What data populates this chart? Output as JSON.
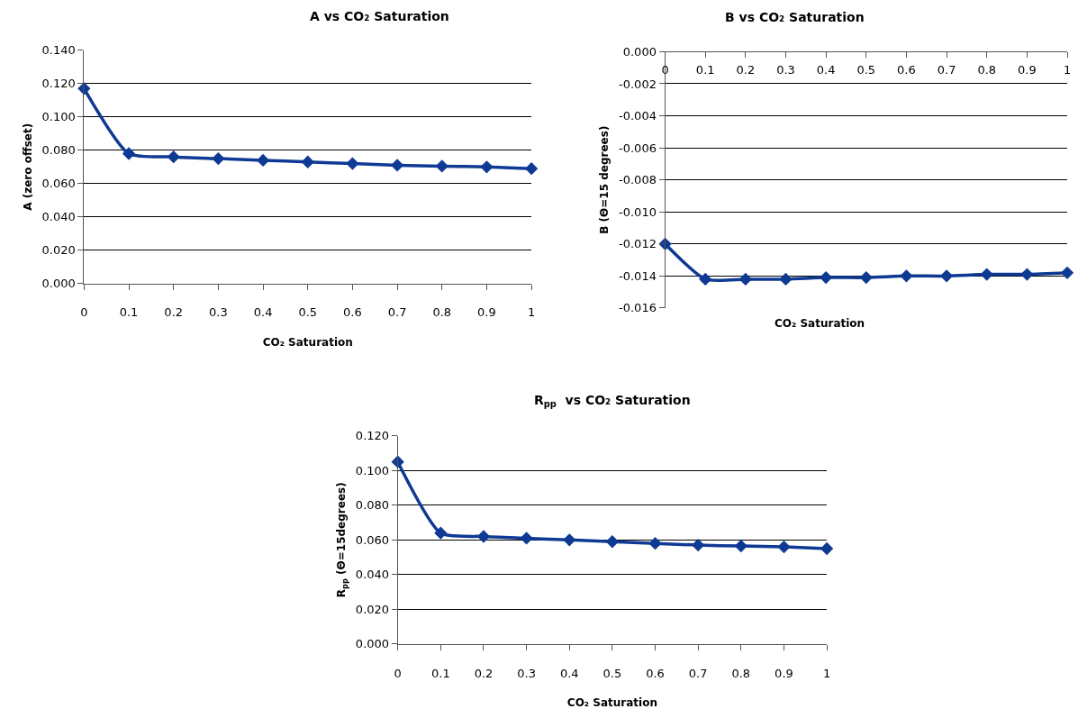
{
  "chart_data": [
    {
      "type": "line",
      "title": "A vs CO₂ Saturation",
      "xlabel": "CO₂ Saturation",
      "ylabel": "A (zero offset)",
      "x": [
        0,
        0.1,
        0.2,
        0.3,
        0.4,
        0.5,
        0.6,
        0.7,
        0.8,
        0.9,
        1
      ],
      "series": [
        {
          "color": "#0f3a94",
          "values": [
            0.117,
            0.078,
            0.076,
            0.075,
            0.074,
            0.073,
            0.072,
            0.071,
            0.0705,
            0.07,
            0.069
          ]
        }
      ],
      "xlim": [
        0,
        1
      ],
      "xticks": [
        0,
        0.1,
        0.2,
        0.3,
        0.4,
        0.5,
        0.6,
        0.7,
        0.8,
        0.9,
        1
      ],
      "ylim": [
        0,
        0.14
      ],
      "yticks": [
        {
          "value": 0,
          "label": "0.000"
        },
        {
          "value": 0.02,
          "label": "0.020"
        },
        {
          "value": 0.04,
          "label": "0.040"
        },
        {
          "value": 0.06,
          "label": "0.060"
        },
        {
          "value": 0.08,
          "label": "0.080"
        },
        {
          "value": 0.1,
          "label": "0.100"
        },
        {
          "value": 0.12,
          "label": "0.120"
        },
        {
          "value": 0.14,
          "label": "0.140"
        }
      ],
      "grid": "y",
      "marker": "diamond",
      "line_style": "solid"
    },
    {
      "type": "line",
      "title": "B vs CO₂ Saturation",
      "xlabel": "CO₂ Saturation",
      "ylabel": "B (Θ=15 degrees)",
      "x": [
        0,
        0.1,
        0.2,
        0.3,
        0.4,
        0.5,
        0.6,
        0.7,
        0.8,
        0.9,
        1
      ],
      "series": [
        {
          "color": "#0f3a94",
          "values": [
            -0.012,
            -0.0142,
            -0.0142,
            -0.0142,
            -0.0141,
            -0.0141,
            -0.014,
            -0.014,
            -0.0139,
            -0.0139,
            -0.0138
          ]
        }
      ],
      "xlim": [
        0,
        1
      ],
      "xticks": [
        0,
        0.1,
        0.2,
        0.3,
        0.4,
        0.5,
        0.6,
        0.7,
        0.8,
        0.9,
        1
      ],
      "ylim": [
        -0.016,
        0
      ],
      "yticks": [
        {
          "value": -0.016,
          "label": "-0.016"
        },
        {
          "value": -0.014,
          "label": "-0.014"
        },
        {
          "value": -0.012,
          "label": "-0.012"
        },
        {
          "value": -0.01,
          "label": "-0.010"
        },
        {
          "value": -0.008,
          "label": "-0.008"
        },
        {
          "value": -0.006,
          "label": "-0.006"
        },
        {
          "value": -0.004,
          "label": "-0.004"
        },
        {
          "value": -0.002,
          "label": "-0.002"
        },
        {
          "value": 0,
          "label": "0.000"
        }
      ],
      "grid": "y",
      "marker": "diamond",
      "line_style": "solid"
    },
    {
      "type": "line",
      "title": "R$_{pp}$  vs CO₂ Saturation",
      "xlabel": "CO₂ Saturation",
      "ylabel": "R$_{pp}$ (Θ=15degrees)",
      "x": [
        0,
        0.1,
        0.2,
        0.3,
        0.4,
        0.5,
        0.6,
        0.7,
        0.8,
        0.9,
        1
      ],
      "series": [
        {
          "color": "#0f3a94",
          "values": [
            0.105,
            0.064,
            0.062,
            0.061,
            0.06,
            0.059,
            0.058,
            0.057,
            0.0565,
            0.056,
            0.055
          ]
        }
      ],
      "xlim": [
        0,
        1
      ],
      "xticks": [
        0,
        0.1,
        0.2,
        0.3,
        0.4,
        0.5,
        0.6,
        0.7,
        0.8,
        0.9,
        1
      ],
      "ylim": [
        0,
        0.12
      ],
      "yticks": [
        {
          "value": 0,
          "label": "0.000"
        },
        {
          "value": 0.02,
          "label": "0.020"
        },
        {
          "value": 0.04,
          "label": "0.040"
        },
        {
          "value": 0.06,
          "label": "0.060"
        },
        {
          "value": 0.08,
          "label": "0.080"
        },
        {
          "value": 0.1,
          "label": "0.100"
        },
        {
          "value": 0.12,
          "label": "0.120"
        }
      ],
      "grid": "y",
      "marker": "diamond",
      "line_style": "solid"
    }
  ]
}
